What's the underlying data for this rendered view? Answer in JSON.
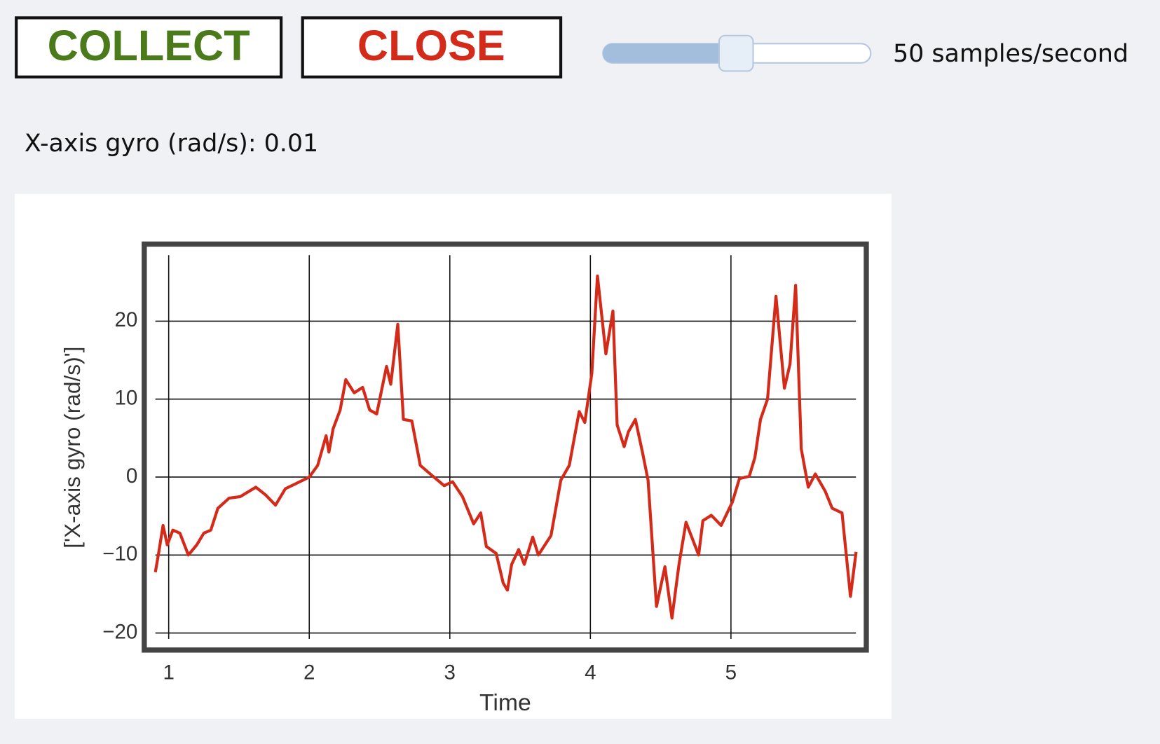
{
  "buttons": [
    {
      "label": "COLLECT"
    },
    {
      "label": "CLOSE"
    }
  ],
  "slider": {
    "label": "50 samples/second"
  },
  "reading": "X-axis gyro (rad/s): 0.01",
  "chart_data": {
    "type": "line",
    "x_label": "Time",
    "y_label": "['X-axis gyro (rad/s)']",
    "color": "#d42a1a",
    "grid": true,
    "x": [
      0.905,
      0.93,
      0.96,
      0.99,
      1.03,
      1.08,
      1.14,
      1.2,
      1.25,
      1.3,
      1.35,
      1.43,
      1.51,
      1.62,
      1.69,
      1.76,
      1.83,
      1.91,
      2.0,
      2.06,
      2.12,
      2.14,
      2.17,
      2.22,
      2.26,
      2.32,
      2.38,
      2.43,
      2.48,
      2.55,
      2.58,
      2.63,
      2.67,
      2.73,
      2.79,
      2.88,
      2.96,
      3.02,
      3.09,
      3.17,
      3.22,
      3.26,
      3.33,
      3.38,
      3.41,
      3.44,
      3.49,
      3.53,
      3.59,
      3.63,
      3.72,
      3.79,
      3.85,
      3.92,
      3.96,
      4.01,
      4.05,
      4.11,
      4.16,
      4.19,
      4.24,
      4.27,
      4.32,
      4.37,
      4.41,
      4.47,
      4.53,
      4.58,
      4.63,
      4.68,
      4.77,
      4.8,
      4.86,
      4.93,
      5.01,
      5.06,
      5.13,
      5.17,
      5.21,
      5.26,
      5.32,
      5.38,
      5.42,
      5.46,
      5.5,
      5.55,
      5.6,
      5.67,
      5.72,
      5.79,
      5.85,
      5.89
    ],
    "values": [
      -12.2,
      -9.6,
      -6.2,
      -8.7,
      -6.8,
      -7.2,
      -10,
      -8.7,
      -7.2,
      -6.8,
      -4.0,
      -2.7,
      -2.5,
      -1.3,
      -2.3,
      -3.6,
      -1.5,
      -0.8,
      0,
      1.5,
      5.3,
      3.2,
      6.2,
      8.6,
      12.5,
      10.8,
      11.5,
      8.6,
      8.1,
      14.2,
      11.9,
      19.6,
      7.4,
      7.2,
      1.5,
      0.1,
      -1.1,
      -0.6,
      -2.5,
      -6.0,
      -4.6,
      -8.9,
      -9.8,
      -13.6,
      -14.5,
      -11.2,
      -9.3,
      -11.2,
      -7.7,
      -10,
      -7.5,
      -0.4,
      1.5,
      8.4,
      7.0,
      13.3,
      25.8,
      15.8,
      21.3,
      6.7,
      3.9,
      5.8,
      7.4,
      3.2,
      -0.4,
      -16.6,
      -11.5,
      -18.1,
      -11.2,
      -5.8,
      -10,
      -5.6,
      -4.9,
      -6.2,
      -3.2,
      -0.2,
      0.1,
      2.5,
      7.4,
      10,
      23.2,
      11.4,
      14.5,
      24.6,
      3.6,
      -1.3,
      0.4,
      -1.8,
      -4.0,
      -4.6,
      -15.3,
      -9.6
    ],
    "xlim": [
      0.842,
      5.947
    ],
    "ylim": [
      -21.9,
      29.6
    ],
    "xticks": [
      1,
      2,
      3,
      4,
      5
    ],
    "yticks": [
      {
        "value": -20,
        "label": "−20"
      },
      {
        "value": -10,
        "label": "−10"
      },
      0,
      10,
      20
    ]
  }
}
